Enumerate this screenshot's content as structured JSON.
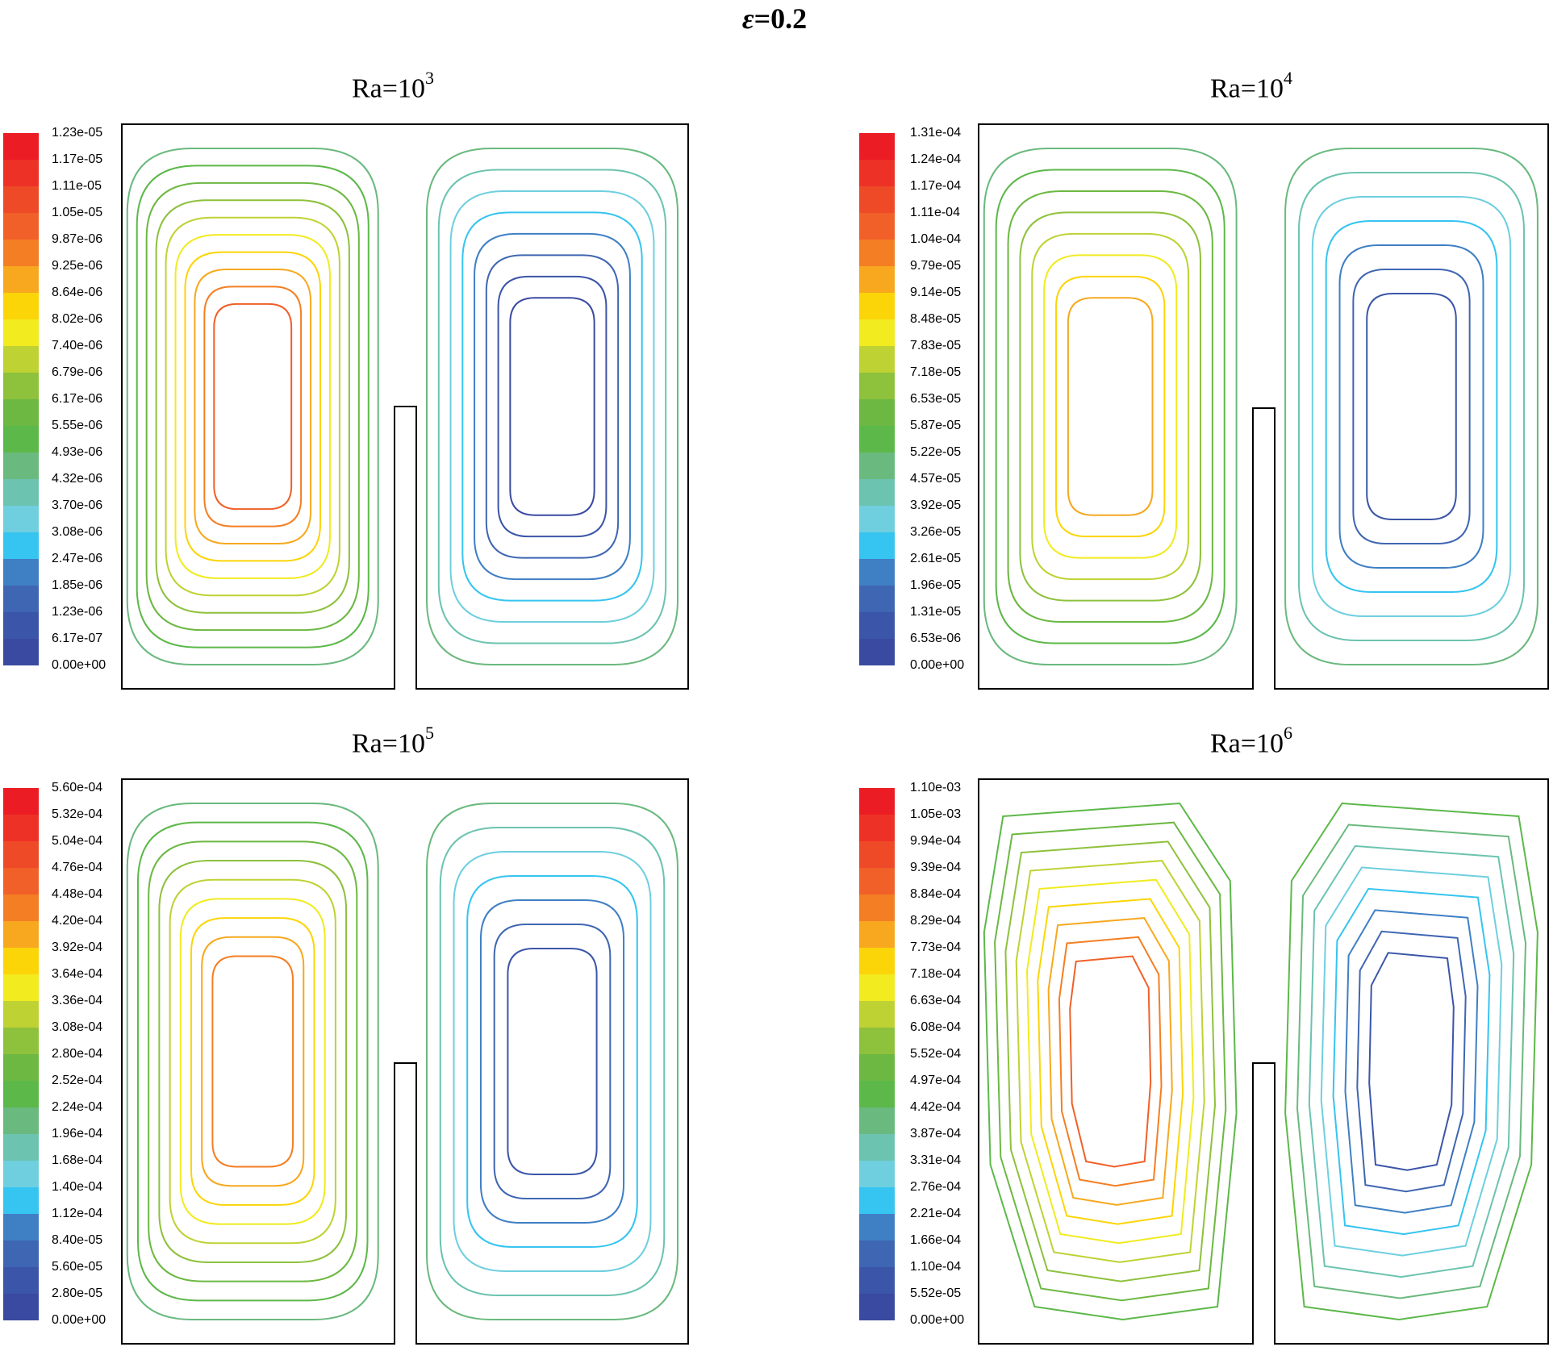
{
  "figure": {
    "title_symbol": "ε",
    "title_value": "=0.2"
  },
  "chart_data": [
    {
      "type": "contour",
      "title_base": "Ra=10",
      "title_exp": "3",
      "colorbar_labels": [
        "1.23e-05",
        "1.17e-05",
        "1.11e-05",
        "1.05e-05",
        "9.87e-06",
        "9.25e-06",
        "8.64e-06",
        "8.02e-06",
        "7.40e-06",
        "6.79e-06",
        "6.17e-06",
        "5.55e-06",
        "4.93e-06",
        "4.32e-06",
        "3.70e-06",
        "3.08e-06",
        "2.47e-06",
        "1.85e-06",
        "1.23e-06",
        "6.17e-07",
        "0.00e+00"
      ],
      "left_cell_levels": [
        7,
        8,
        9,
        10,
        11,
        12,
        13,
        14,
        15,
        16
      ],
      "right_cell_levels": [
        7,
        6,
        5,
        4,
        3,
        2,
        1,
        0
      ],
      "vortex_shape": "oval"
    },
    {
      "type": "contour",
      "title_base": "Ra=10",
      "title_exp": "4",
      "colorbar_labels": [
        "1.31e-04",
        "1.24e-04",
        "1.17e-04",
        "1.11e-04",
        "1.04e-04",
        "9.79e-05",
        "9.14e-05",
        "8.48e-05",
        "7.83e-05",
        "7.18e-05",
        "6.53e-05",
        "5.87e-05",
        "5.22e-05",
        "4.57e-05",
        "3.92e-05",
        "3.26e-05",
        "2.61e-05",
        "1.96e-05",
        "1.31e-05",
        "6.53e-06",
        "0.00e+00"
      ],
      "left_cell_levels": [
        7,
        8,
        9,
        10,
        11,
        12,
        13,
        14
      ],
      "right_cell_levels": [
        7,
        6,
        5,
        4,
        3,
        2,
        1
      ],
      "vortex_shape": "oval"
    },
    {
      "type": "contour",
      "title_base": "Ra=10",
      "title_exp": "5",
      "colorbar_labels": [
        "5.60e-04",
        "5.32e-04",
        "5.04e-04",
        "4.76e-04",
        "4.48e-04",
        "4.20e-04",
        "3.92e-04",
        "3.64e-04",
        "3.36e-04",
        "3.08e-04",
        "2.80e-04",
        "2.52e-04",
        "2.24e-04",
        "1.96e-04",
        "1.68e-04",
        "1.40e-04",
        "1.12e-04",
        "8.40e-05",
        "5.60e-05",
        "2.80e-05",
        "0.00e+00"
      ],
      "left_cell_levels": [
        7,
        8,
        9,
        10,
        11,
        12,
        13,
        14,
        15
      ],
      "right_cell_levels": [
        7,
        6,
        5,
        4,
        3,
        2,
        1
      ],
      "vortex_shape": "oval"
    },
    {
      "type": "contour",
      "title_base": "Ra=10",
      "title_exp": "6",
      "colorbar_labels": [
        "1.10e-03",
        "1.05e-03",
        "9.94e-04",
        "9.39e-04",
        "8.84e-04",
        "8.29e-04",
        "7.73e-04",
        "7.18e-04",
        "6.63e-04",
        "6.08e-04",
        "5.52e-04",
        "4.97e-04",
        "4.42e-04",
        "3.87e-04",
        "3.31e-04",
        "2.76e-04",
        "2.21e-04",
        "1.66e-04",
        "1.10e-04",
        "5.52e-05",
        "0.00e+00"
      ],
      "left_cell_levels": [
        8,
        9,
        10,
        11,
        12,
        13,
        14,
        15,
        16
      ],
      "right_cell_levels": [
        8,
        7,
        6,
        5,
        4,
        3,
        2,
        1
      ],
      "vortex_shape": "comma"
    }
  ],
  "colormap": [
    "#3a4aa0",
    "#3b55a8",
    "#3f66b2",
    "#3f7fc4",
    "#36c4f0",
    "#6fcfdf",
    "#6cc3b0",
    "#6ab97e",
    "#5cb849",
    "#6cb842",
    "#8ec13c",
    "#bfd234",
    "#f1eb20",
    "#fbd508",
    "#f7a81f",
    "#f47e23",
    "#f06028",
    "#ee4a27",
    "#ed3126",
    "#ec1c24"
  ]
}
